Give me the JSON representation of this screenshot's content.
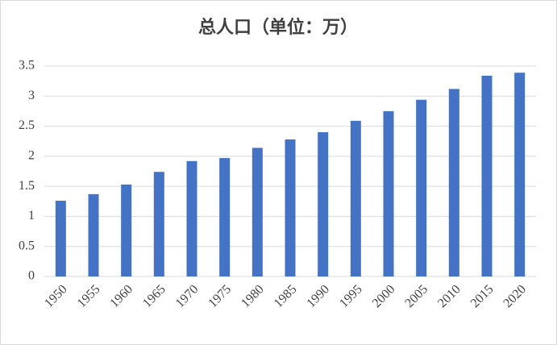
{
  "chart_data": {
    "type": "bar",
    "title": "总人口（单位：万）",
    "categories": [
      "1950",
      "1955",
      "1960",
      "1965",
      "1970",
      "1975",
      "1980",
      "1985",
      "1990",
      "1995",
      "2000",
      "2005",
      "2010",
      "2015",
      "2020"
    ],
    "values": [
      1.26,
      1.37,
      1.53,
      1.74,
      1.92,
      1.97,
      2.14,
      2.28,
      2.4,
      2.59,
      2.75,
      2.94,
      3.12,
      3.34,
      3.39
    ],
    "color": "#4472c4",
    "ylim": [
      0,
      3.5
    ],
    "yticks": [
      0,
      0.5,
      1,
      1.5,
      2,
      2.5,
      3,
      3.5
    ],
    "grid": true
  }
}
